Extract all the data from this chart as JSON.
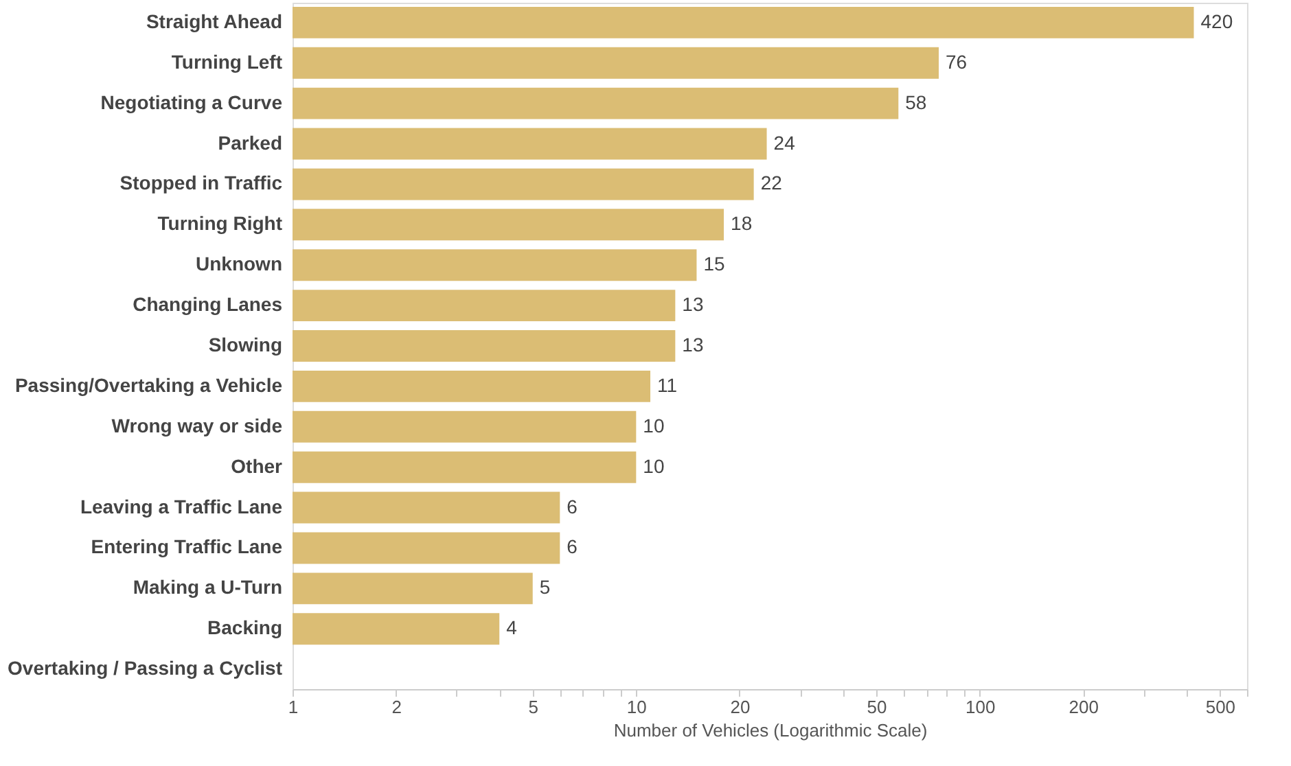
{
  "chart_data": {
    "type": "bar",
    "orientation": "horizontal",
    "xlabel": "Number of Vehicles (Logarithmic Scale)",
    "categories": [
      "Straight Ahead",
      "Turning Left",
      "Negotiating a Curve",
      "Parked",
      "Stopped in Traffic",
      "Turning Right",
      "Unknown",
      "Changing Lanes",
      "Slowing",
      "Passing/Overtaking a Vehicle",
      "Wrong way or side",
      "Other",
      "Leaving a Traffic Lane",
      "Entering Traffic Lane",
      "Making a U-Turn",
      "Backing",
      "Overtaking / Passing a Cyclist"
    ],
    "values": [
      420,
      76,
      58,
      24,
      22,
      18,
      15,
      13,
      13,
      11,
      10,
      10,
      6,
      6,
      5,
      4,
      null
    ],
    "color": "#dbbd74",
    "log": "x",
    "xlim": [
      1,
      600
    ],
    "xticks": [
      1,
      2,
      {
        "value": 3,
        "label": null
      },
      {
        "value": 4,
        "label": null
      },
      5,
      {
        "value": 6,
        "label": null
      },
      {
        "value": 7,
        "label": null
      },
      {
        "value": 8,
        "label": null
      },
      {
        "value": 9,
        "label": null
      },
      10,
      20,
      {
        "value": 30,
        "label": null
      },
      {
        "value": 40,
        "label": null
      },
      50,
      {
        "value": 60,
        "label": null
      },
      {
        "value": 70,
        "label": null
      },
      {
        "value": 80,
        "label": null
      },
      {
        "value": 90,
        "label": null
      },
      100,
      200,
      {
        "value": 300,
        "label": null
      },
      {
        "value": 400,
        "label": null
      },
      500,
      {
        "value": 600,
        "label": null
      }
    ],
    "data_labels": true,
    "grid": false
  }
}
